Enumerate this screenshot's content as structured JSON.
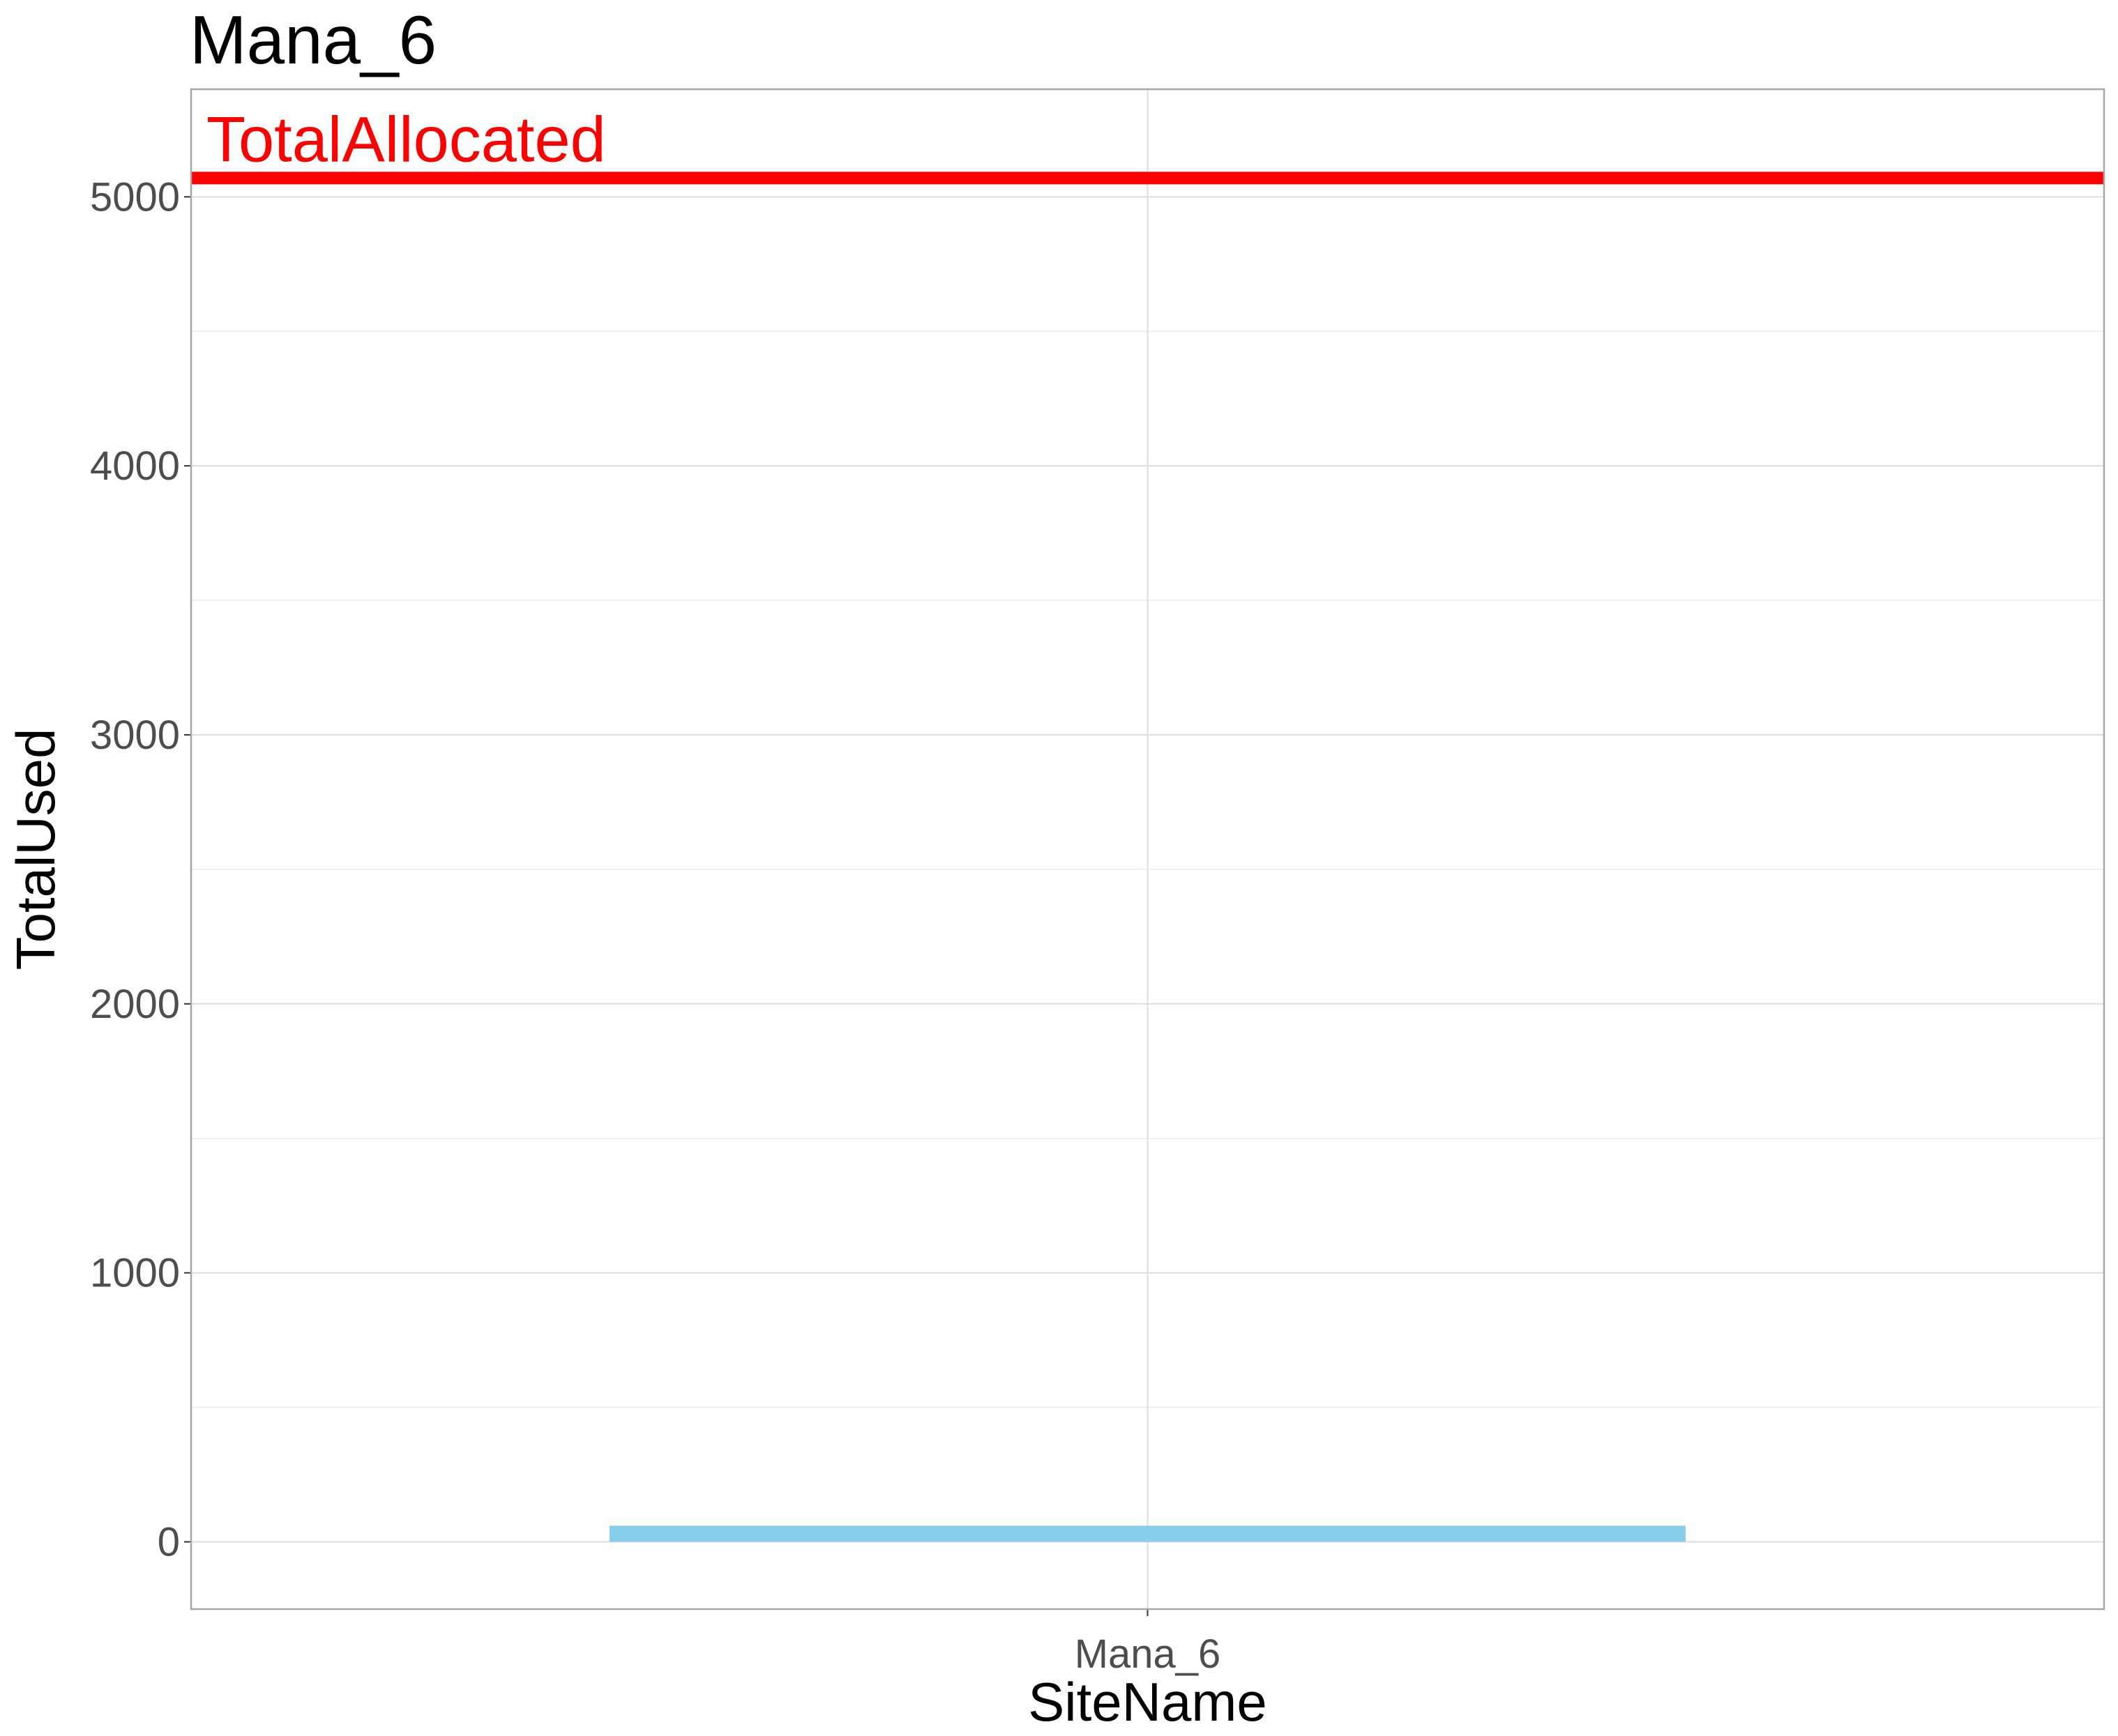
{
  "chart_data": {
    "type": "bar",
    "title": "Mana_6",
    "xlabel": "SiteName",
    "ylabel": "TotalUsed",
    "categories": [
      "Mana_6"
    ],
    "values": [
      60
    ],
    "ylim": [
      -250,
      5400
    ],
    "yticks": [
      0,
      1000,
      2000,
      3000,
      4000,
      5000
    ],
    "grid": true,
    "bar_color": "#87CEEB",
    "reference_line": {
      "label": "TotalAllocated",
      "value": 5070,
      "color": "#FF0000"
    }
  }
}
